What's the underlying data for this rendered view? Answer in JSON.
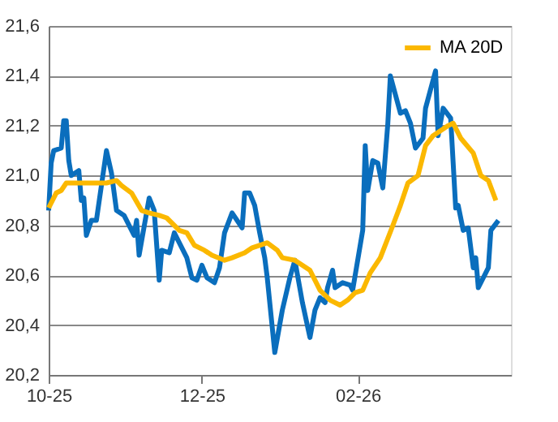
{
  "chart_data": {
    "type": "line",
    "xlim": [
      "2025-10-01",
      "2026-04-03"
    ],
    "xticks": [
      {
        "value": "2025-10-01",
        "label": "10-25"
      },
      {
        "value": "2025-12-01",
        "label": "12-25"
      },
      {
        "value": "2026-02-01",
        "label": "02-26"
      }
    ],
    "ylim": [
      20.2,
      21.6
    ],
    "yticks": [
      {
        "value": 20.2,
        "label": "20,2"
      },
      {
        "value": 20.4,
        "label": "20,4"
      },
      {
        "value": 20.6,
        "label": "20,6"
      },
      {
        "value": 20.8,
        "label": "20,8"
      },
      {
        "value": 21.0,
        "label": "21,0"
      },
      {
        "value": 21.2,
        "label": "21,2"
      },
      {
        "value": 21.4,
        "label": "21,4"
      },
      {
        "value": 21.6,
        "label": "21,6"
      }
    ],
    "grid": "y",
    "legend": "top right",
    "series": [
      {
        "color": "#0a6ebd",
        "x": [
          "2025-10-01",
          "2025-10-02",
          "2025-10-03",
          "2025-10-06",
          "2025-10-07",
          "2025-10-08",
          "2025-10-09",
          "2025-10-10",
          "2025-10-13",
          "2025-10-14",
          "2025-10-15",
          "2025-10-16",
          "2025-10-18",
          "2025-10-20",
          "2025-10-24",
          "2025-10-26",
          "2025-10-28",
          "2025-10-31",
          "2025-11-02",
          "2025-11-04",
          "2025-11-05",
          "2025-11-06",
          "2025-11-10",
          "2025-11-12",
          "2025-11-14",
          "2025-11-15",
          "2025-11-18",
          "2025-11-20",
          "2025-11-25",
          "2025-11-27",
          "2025-11-29",
          "2025-12-01",
          "2025-12-03",
          "2025-12-06",
          "2025-12-08",
          "2025-12-10",
          "2025-12-13",
          "2025-12-17",
          "2025-12-18",
          "2025-12-20",
          "2025-12-22",
          "2025-12-24",
          "2025-12-26",
          "2025-12-27",
          "2025-12-30",
          "2026-01-02",
          "2026-01-05",
          "2026-01-07",
          "2026-01-10",
          "2026-01-13",
          "2026-01-15",
          "2026-01-17",
          "2026-01-19",
          "2026-01-20",
          "2026-01-22",
          "2026-01-23",
          "2026-01-26",
          "2026-01-29",
          "2026-01-30",
          "2026-02-03",
          "2026-02-04",
          "2026-02-05",
          "2026-02-07",
          "2026-02-09",
          "2026-02-11",
          "2026-02-13",
          "2026-02-14",
          "2026-02-18",
          "2026-02-20",
          "2026-02-22",
          "2026-02-24",
          "2026-02-27",
          "2026-02-28",
          "2026-03-04",
          "2026-03-05",
          "2026-03-07",
          "2026-03-10",
          "2026-03-12",
          "2026-03-13",
          "2026-03-15",
          "2026-03-17",
          "2026-03-19",
          "2026-03-20",
          "2026-03-21",
          "2026-03-25",
          "2026-03-26",
          "2026-03-29"
        ],
        "values": [
          20.86,
          21.05,
          21.1,
          21.11,
          21.22,
          21.22,
          21.06,
          21.0,
          21.02,
          20.9,
          20.91,
          20.76,
          20.82,
          20.82,
          21.1,
          21.01,
          20.86,
          20.84,
          20.8,
          20.76,
          20.82,
          20.68,
          20.91,
          20.86,
          20.58,
          20.7,
          20.69,
          20.77,
          20.67,
          20.59,
          20.58,
          20.64,
          20.59,
          20.57,
          20.63,
          20.77,
          20.85,
          20.79,
          20.93,
          20.93,
          20.88,
          20.77,
          20.67,
          20.59,
          20.29,
          20.46,
          20.59,
          20.66,
          20.49,
          20.35,
          20.46,
          20.51,
          20.49,
          20.55,
          20.62,
          20.55,
          20.57,
          20.56,
          20.54,
          20.78,
          21.12,
          20.94,
          21.06,
          21.05,
          20.95,
          21.21,
          21.4,
          21.25,
          21.26,
          21.21,
          21.11,
          21.15,
          21.27,
          21.42,
          21.16,
          21.27,
          21.23,
          20.87,
          20.88,
          20.78,
          20.79,
          20.63,
          20.67,
          20.55,
          20.63,
          20.78,
          20.82
        ]
      },
      {
        "name": "MA 20D",
        "color": "#fbb800",
        "x": [
          "2025-10-01",
          "2025-10-04",
          "2025-10-06",
          "2025-10-08",
          "2025-10-13",
          "2025-10-17",
          "2025-10-24",
          "2025-10-28",
          "2025-10-30",
          "2025-11-03",
          "2025-11-07",
          "2025-11-10",
          "2025-11-14",
          "2025-11-17",
          "2025-11-22",
          "2025-11-25",
          "2025-11-28",
          "2025-12-02",
          "2025-12-05",
          "2025-12-10",
          "2025-12-13",
          "2025-12-18",
          "2025-12-21",
          "2025-12-27",
          "2025-12-31",
          "2026-01-02",
          "2026-01-07",
          "2026-01-13",
          "2026-01-17",
          "2026-01-21",
          "2026-01-25",
          "2026-01-28",
          "2026-01-31",
          "2026-02-03",
          "2026-02-06",
          "2026-02-10",
          "2026-02-15",
          "2026-02-18",
          "2026-02-21",
          "2026-02-25",
          "2026-02-28",
          "2026-03-03",
          "2026-03-09",
          "2026-03-11",
          "2026-03-14",
          "2026-03-19",
          "2026-03-22",
          "2026-03-25",
          "2026-03-28"
        ],
        "values": [
          20.87,
          20.93,
          20.94,
          20.97,
          20.97,
          20.97,
          20.97,
          20.98,
          20.96,
          20.93,
          20.86,
          20.85,
          20.84,
          20.83,
          20.78,
          20.77,
          20.72,
          20.7,
          20.68,
          20.66,
          20.67,
          20.69,
          20.71,
          20.73,
          20.7,
          20.67,
          20.66,
          20.62,
          20.54,
          20.5,
          20.48,
          20.5,
          20.53,
          20.54,
          20.61,
          20.67,
          20.8,
          20.88,
          20.97,
          21.0,
          21.12,
          21.16,
          21.2,
          21.21,
          21.15,
          21.09,
          21.0,
          20.98,
          20.9
        ]
      }
    ]
  }
}
